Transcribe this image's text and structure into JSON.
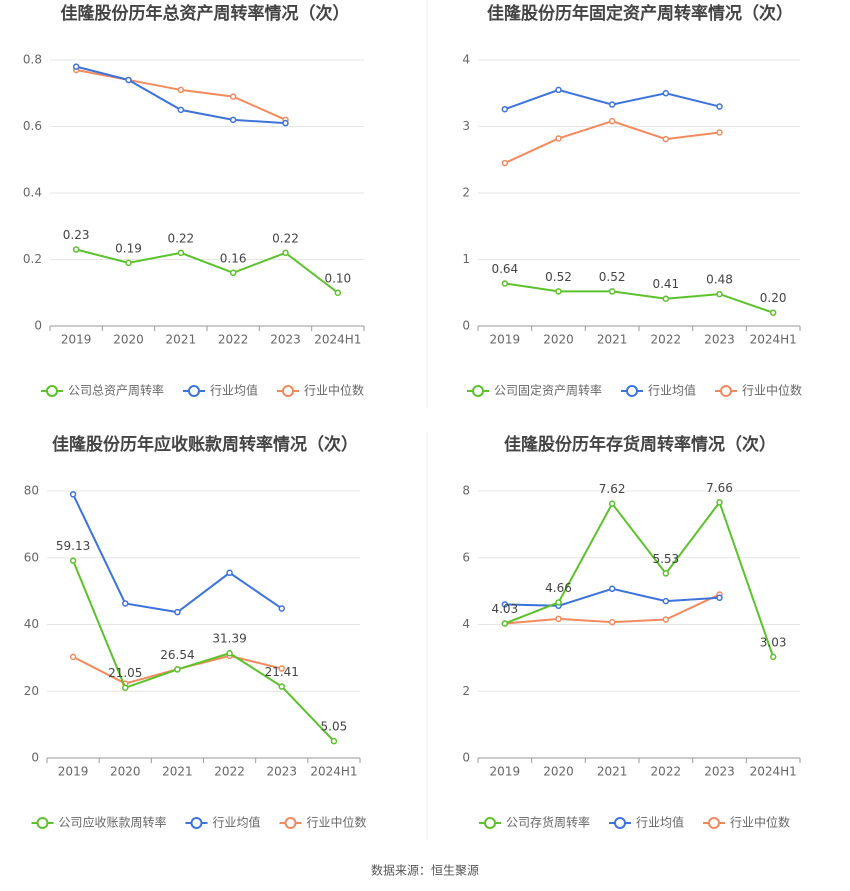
{
  "chart_data": [
    {
      "type": "line",
      "title": "佳隆股份历年总资产周转率情况（次）",
      "categories": [
        "2019",
        "2020",
        "2021",
        "2022",
        "2023",
        "2024H1"
      ],
      "ylim": [
        0,
        0.8
      ],
      "yticks": [
        0,
        0.2,
        0.4,
        0.6,
        0.8
      ],
      "grid": true,
      "series": [
        {
          "name": "公司总资产周转率",
          "color": "#5cc22b",
          "values": [
            0.23,
            0.19,
            0.22,
            0.16,
            0.22,
            0.1
          ],
          "value_labels": [
            "0.23",
            "0.19",
            "0.22",
            "0.16",
            "0.22",
            "0.10"
          ]
        },
        {
          "name": "行业均值",
          "color": "#3d73dc",
          "values": [
            0.78,
            0.74,
            0.65,
            0.62,
            0.61,
            null
          ]
        },
        {
          "name": "行业中位数",
          "color": "#f38a5e",
          "values": [
            0.77,
            0.74,
            0.71,
            0.69,
            0.62,
            null
          ]
        }
      ]
    },
    {
      "type": "line",
      "title": "佳隆股份历年固定资产周转率情况（次）",
      "categories": [
        "2019",
        "2020",
        "2021",
        "2022",
        "2023",
        "2024H1"
      ],
      "ylim": [
        0,
        4
      ],
      "yticks": [
        0,
        1,
        2,
        3,
        4
      ],
      "grid": true,
      "series": [
        {
          "name": "公司固定资产周转率",
          "color": "#5cc22b",
          "values": [
            0.64,
            0.52,
            0.52,
            0.41,
            0.48,
            0.2
          ],
          "value_labels": [
            "0.64",
            "0.52",
            "0.52",
            "0.41",
            "0.48",
            "0.20"
          ]
        },
        {
          "name": "行业均值",
          "color": "#3d73dc",
          "values": [
            3.26,
            3.55,
            3.33,
            3.5,
            3.3,
            null
          ]
        },
        {
          "name": "行业中位数",
          "color": "#f38a5e",
          "values": [
            2.45,
            2.82,
            3.08,
            2.81,
            2.91,
            null
          ]
        }
      ]
    },
    {
      "type": "line",
      "title": "佳隆股份历年应收账款周转率情况（次）",
      "categories": [
        "2019",
        "2020",
        "2021",
        "2022",
        "2023",
        "2024H1"
      ],
      "ylim": [
        0,
        80
      ],
      "yticks": [
        0,
        20,
        40,
        60,
        80
      ],
      "grid": true,
      "series": [
        {
          "name": "公司应收账款周转率",
          "color": "#5cc22b",
          "values": [
            59.13,
            21.05,
            26.54,
            31.39,
            21.41,
            5.05
          ],
          "value_labels": [
            "59.13",
            "21.05",
            "26.54",
            "31.39",
            "21.41",
            "5.05"
          ]
        },
        {
          "name": "行业均值",
          "color": "#3d73dc",
          "values": [
            79.0,
            46.3,
            43.7,
            55.5,
            44.8,
            null
          ]
        },
        {
          "name": "行业中位数",
          "color": "#f38a5e",
          "values": [
            30.3,
            22.3,
            26.6,
            30.6,
            26.8,
            null
          ]
        }
      ]
    },
    {
      "type": "line",
      "title": "佳隆股份历年存货周转率情况（次）",
      "categories": [
        "2019",
        "2020",
        "2021",
        "2022",
        "2023",
        "2024H1"
      ],
      "ylim": [
        0,
        8
      ],
      "yticks": [
        0,
        2,
        4,
        6,
        8
      ],
      "grid": true,
      "series": [
        {
          "name": "公司存货周转率",
          "color": "#5cc22b",
          "values": [
            4.03,
            4.66,
            7.62,
            5.53,
            7.66,
            3.03
          ],
          "value_labels": [
            "4.03",
            "4.66",
            "7.62",
            "5.53",
            "7.66",
            "3.03"
          ]
        },
        {
          "name": "行业均值",
          "color": "#3d73dc",
          "values": [
            4.6,
            4.56,
            5.07,
            4.7,
            4.8,
            null
          ]
        },
        {
          "name": "行业中位数",
          "color": "#f38a5e",
          "values": [
            4.03,
            4.17,
            4.07,
            4.15,
            4.9,
            null
          ]
        }
      ]
    }
  ],
  "source": "数据来源：恒生聚源"
}
